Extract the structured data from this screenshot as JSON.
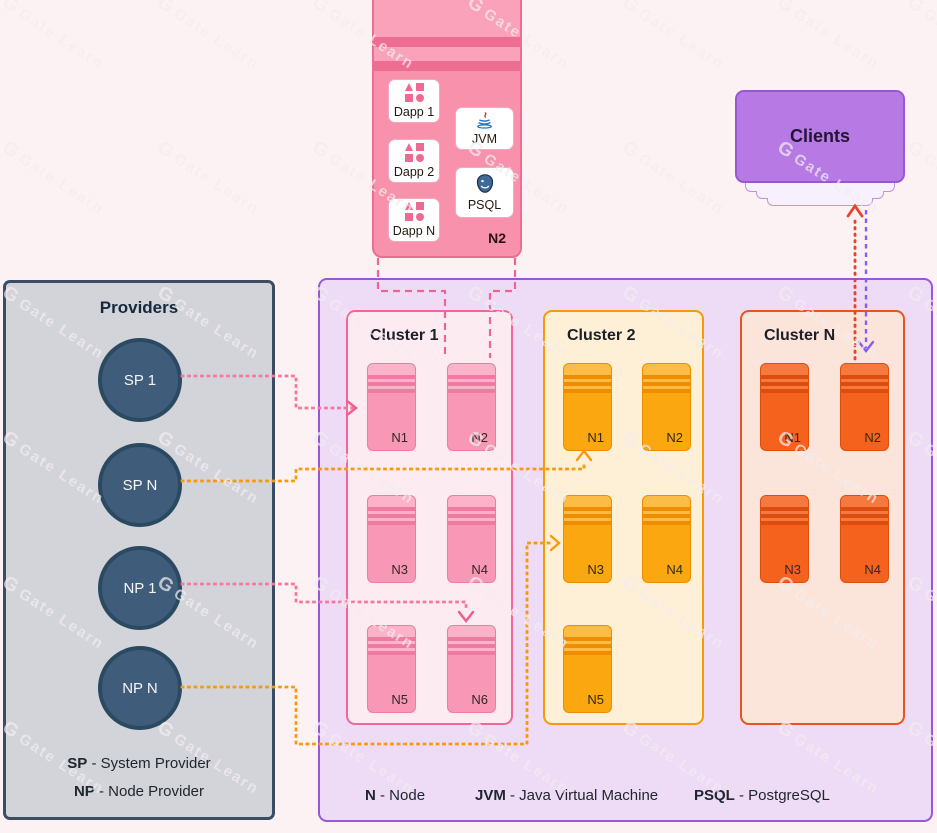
{
  "watermark": {
    "logo": "G",
    "text": "Gate Learn"
  },
  "legend_separator": " - ",
  "colors": {
    "background": "#fcf2f4",
    "pink_line": "#f4779f",
    "pink_chevron": "#ee5d8d",
    "detail_dash": "#ee6492",
    "orange_line": "#f59b0b",
    "red_line": "#e8432a",
    "purple_line": "#8a5cf5"
  },
  "node_detail": {
    "dapps": [
      "Dapp 1",
      "Dapp 2",
      "Dapp N"
    ],
    "jvm_label": "JVM",
    "psql_label": "PSQL",
    "node_label": "N2"
  },
  "clients": {
    "label": "Clients"
  },
  "providers": {
    "title": "Providers",
    "circles": [
      "SP 1",
      "SP N",
      "NP 1",
      "NP N"
    ],
    "legend": [
      {
        "abbr": "SP",
        "desc": "System Provider"
      },
      {
        "abbr": "NP",
        "desc": "Node Provider"
      }
    ]
  },
  "clusters": [
    {
      "title": "Cluster 1",
      "nodes": [
        "N1",
        "N2",
        "N3",
        "N4",
        "N5",
        "N6"
      ],
      "colors": {
        "bg": "#fdebf2",
        "border": "#f2679a",
        "body": "#f898b6",
        "cap": "#fab3c8",
        "stripe": "#ef7aa2"
      }
    },
    {
      "title": "Cluster 2",
      "nodes": [
        "N1",
        "N2",
        "N3",
        "N4",
        "N5"
      ],
      "colors": {
        "bg": "#fdf0d7",
        "border": "#f59b08",
        "body": "#fba70f",
        "cap": "#fcbc45",
        "stripe": "#ef8c00"
      }
    },
    {
      "title": "Cluster N",
      "nodes": [
        "N1",
        "N2",
        "N3",
        "N4"
      ],
      "colors": {
        "bg": "#fbe5da",
        "border": "#e8541e",
        "body": "#f4621d",
        "cap": "#f67a40",
        "stripe": "#dd4e0e"
      }
    }
  ],
  "bottom_legend": [
    {
      "abbr": "N",
      "desc": "Node"
    },
    {
      "abbr": "JVM",
      "desc": "Java Virtual Machine"
    },
    {
      "abbr": "PSQL",
      "desc": "PostgreSQL"
    }
  ]
}
